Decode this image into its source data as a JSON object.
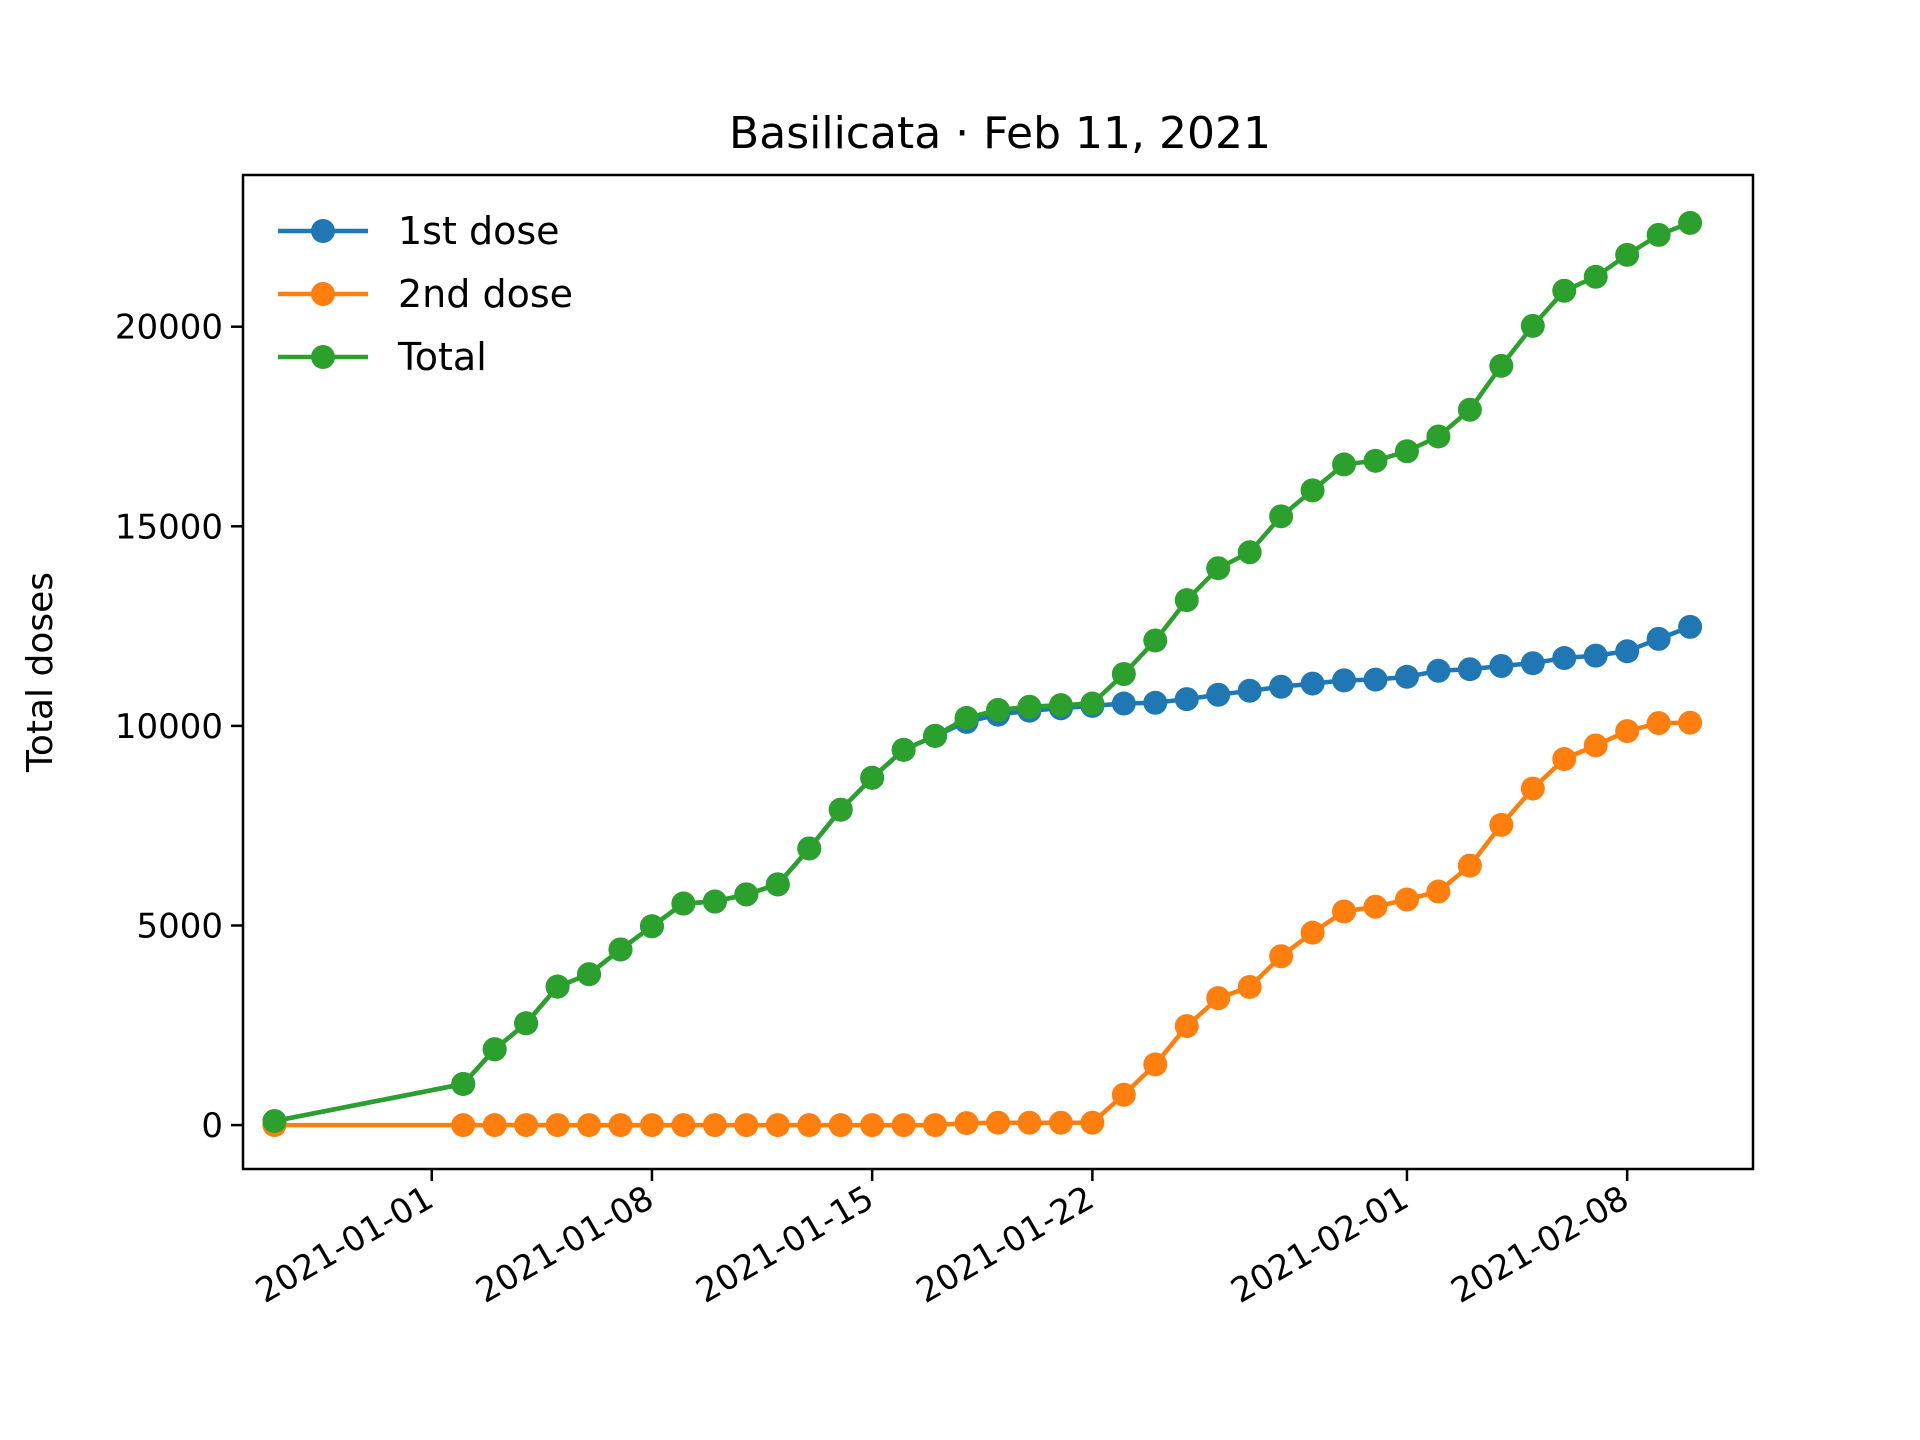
{
  "chart_data": {
    "type": "line",
    "title": "Basilicata · Feb 11, 2021",
    "xlabel": "",
    "ylabel": "Total doses",
    "xlim": [
      "2020-12-26",
      "2021-02-12"
    ],
    "ylim": [
      -1100,
      23800
    ],
    "x_ticks": [
      "2021-01-01",
      "2021-01-08",
      "2021-01-15",
      "2021-01-22",
      "2021-02-01",
      "2021-02-08"
    ],
    "y_ticks": [
      0,
      5000,
      10000,
      15000,
      20000
    ],
    "grid": false,
    "legend_position": "top-left",
    "x": [
      "2020-12-27",
      "2021-01-02",
      "2021-01-03",
      "2021-01-04",
      "2021-01-05",
      "2021-01-06",
      "2021-01-07",
      "2021-01-08",
      "2021-01-09",
      "2021-01-10",
      "2021-01-11",
      "2021-01-12",
      "2021-01-13",
      "2021-01-14",
      "2021-01-15",
      "2021-01-16",
      "2021-01-17",
      "2021-01-18",
      "2021-01-19",
      "2021-01-20",
      "2021-01-21",
      "2021-01-22",
      "2021-01-23",
      "2021-01-24",
      "2021-01-25",
      "2021-01-26",
      "2021-01-27",
      "2021-01-28",
      "2021-01-29",
      "2021-01-30",
      "2021-01-31",
      "2021-02-01",
      "2021-02-02",
      "2021-02-03",
      "2021-02-04",
      "2021-02-05",
      "2021-02-06",
      "2021-02-07",
      "2021-02-08",
      "2021-02-09",
      "2021-02-10"
    ],
    "series": [
      {
        "name": "1st dose",
        "color": "#1f77b4",
        "values": [
          100,
          1030,
          1900,
          2550,
          3470,
          3780,
          4400,
          4980,
          5550,
          5600,
          5780,
          6030,
          6930,
          7900,
          8700,
          9400,
          9750,
          10100,
          10280,
          10380,
          10440,
          10500,
          10560,
          10580,
          10670,
          10780,
          10880,
          10980,
          11060,
          11140,
          11160,
          11230,
          11380,
          11420,
          11500,
          11570,
          11700,
          11760,
          11870,
          12180,
          12480
        ]
      },
      {
        "name": "2nd dose",
        "color": "#ff7f0e",
        "values": [
          0,
          0,
          0,
          0,
          0,
          0,
          0,
          0,
          0,
          0,
          0,
          0,
          0,
          0,
          0,
          0,
          0,
          50,
          60,
          60,
          60,
          60,
          760,
          1520,
          2480,
          3180,
          3460,
          4230,
          4820,
          5350,
          5470,
          5650,
          5850,
          6500,
          7520,
          8430,
          9170,
          9510,
          9870,
          10070,
          10080
        ]
      },
      {
        "name": "Total",
        "color": "#2ca02c",
        "values": [
          100,
          1030,
          1900,
          2550,
          3470,
          3780,
          4400,
          4980,
          5550,
          5600,
          5780,
          6030,
          6930,
          7900,
          8700,
          9400,
          9750,
          10200,
          10400,
          10480,
          10520,
          10560,
          11300,
          12140,
          13150,
          13950,
          14350,
          15250,
          15900,
          16550,
          16640,
          16880,
          17250,
          17920,
          19020,
          20020,
          20900,
          21250,
          21800,
          22300,
          22600
        ]
      }
    ]
  }
}
